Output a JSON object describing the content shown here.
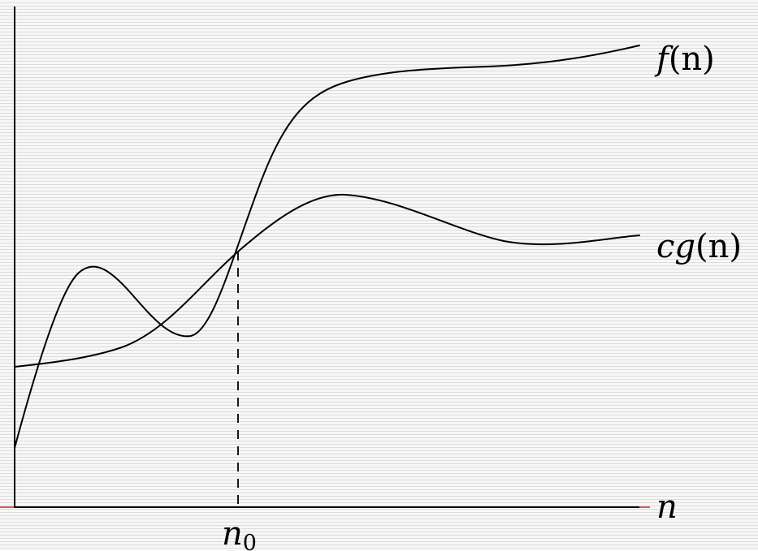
{
  "diagram": {
    "curves": [
      {
        "id": "f",
        "label_main": "f",
        "label_arg": "(n)"
      },
      {
        "id": "cg",
        "label_main": "cg",
        "label_arg": "(n)"
      }
    ],
    "axis": {
      "x_label": "n",
      "marker_main": "n",
      "marker_sub": "0"
    }
  }
}
